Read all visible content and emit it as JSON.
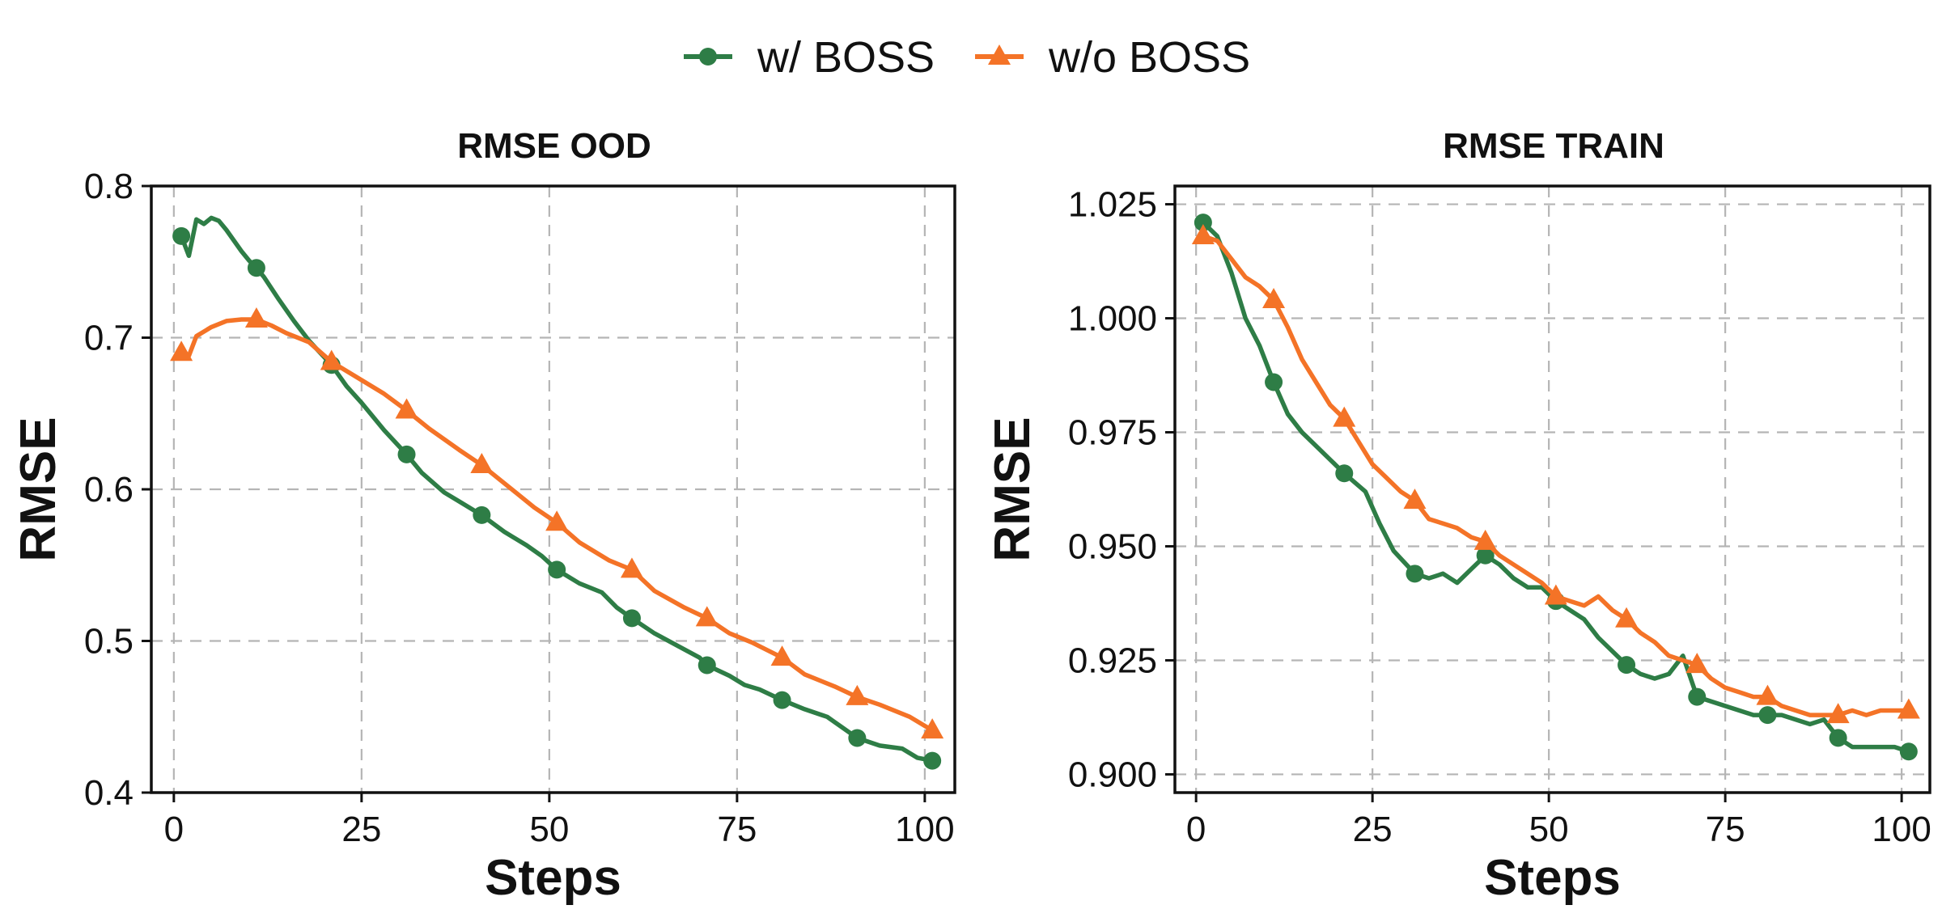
{
  "legend": {
    "items": [
      {
        "label": "w/ BOSS",
        "color": "#2e7d46",
        "marker": "circle"
      },
      {
        "label": "w/o BOSS",
        "color": "#f47327",
        "marker": "triangle"
      }
    ]
  },
  "chart_data": [
    {
      "type": "line",
      "title": "RMSE OOD",
      "xlabel": "Steps",
      "ylabel": "RMSE",
      "xlim": [
        -3,
        104
      ],
      "ylim": [
        0.4,
        0.8
      ],
      "xticks": [
        0,
        25,
        50,
        75,
        100
      ],
      "yticks": [
        0.4,
        0.5,
        0.6,
        0.7,
        0.8
      ],
      "ytick_labels": [
        "0.4",
        "0.5",
        "0.6",
        "0.7",
        "0.8"
      ],
      "grid": true,
      "legend_position": "top-center",
      "series": [
        {
          "name": "w/ BOSS",
          "color": "#2e7d46",
          "marker": "circle",
          "marker_x": [
            1,
            11,
            21,
            31,
            41,
            51,
            61,
            71,
            81,
            91,
            101
          ],
          "x": [
            1,
            2,
            3,
            4,
            5,
            6,
            7,
            8,
            9,
            10,
            11,
            12,
            14,
            16,
            18,
            21,
            23,
            25,
            28,
            31,
            33,
            36,
            38,
            41,
            44,
            47,
            49,
            51,
            54,
            57,
            59,
            61,
            64,
            67,
            70,
            71,
            74,
            76,
            78,
            81,
            84,
            87,
            89,
            91,
            94,
            97,
            99,
            101
          ],
          "y": [
            0.767,
            0.754,
            0.778,
            0.775,
            0.779,
            0.777,
            0.771,
            0.764,
            0.757,
            0.751,
            0.746,
            0.74,
            0.725,
            0.711,
            0.698,
            0.682,
            0.668,
            0.657,
            0.639,
            0.623,
            0.611,
            0.598,
            0.592,
            0.583,
            0.572,
            0.563,
            0.556,
            0.547,
            0.538,
            0.532,
            0.522,
            0.515,
            0.505,
            0.497,
            0.489,
            0.484,
            0.477,
            0.471,
            0.468,
            0.461,
            0.455,
            0.45,
            0.443,
            0.436,
            0.431,
            0.429,
            0.423,
            0.421
          ]
        },
        {
          "name": "w/o BOSS",
          "color": "#f47327",
          "marker": "triangle",
          "marker_x": [
            1,
            11,
            21,
            31,
            41,
            51,
            61,
            71,
            81,
            91,
            101
          ],
          "x": [
            1,
            2,
            3,
            5,
            7,
            9,
            11,
            13,
            15,
            18,
            21,
            24,
            28,
            31,
            34,
            38,
            41,
            45,
            48,
            51,
            54,
            58,
            61,
            64,
            68,
            71,
            74,
            77,
            81,
            84,
            88,
            91,
            94,
            98,
            101
          ],
          "y": [
            0.69,
            0.688,
            0.701,
            0.707,
            0.711,
            0.712,
            0.712,
            0.708,
            0.703,
            0.697,
            0.684,
            0.675,
            0.663,
            0.652,
            0.64,
            0.626,
            0.616,
            0.6,
            0.588,
            0.578,
            0.565,
            0.553,
            0.547,
            0.533,
            0.522,
            0.515,
            0.505,
            0.499,
            0.489,
            0.478,
            0.47,
            0.463,
            0.458,
            0.45,
            0.441
          ]
        }
      ]
    },
    {
      "type": "line",
      "title": "RMSE TRAIN",
      "xlabel": "Steps",
      "ylabel": "RMSE",
      "xlim": [
        -3,
        104
      ],
      "ylim": [
        0.896,
        1.029
      ],
      "xticks": [
        0,
        25,
        50,
        75,
        100
      ],
      "yticks": [
        0.9,
        0.925,
        0.95,
        0.975,
        1.0,
        1.025
      ],
      "ytick_labels": [
        "0.900",
        "0.925",
        "0.950",
        "0.975",
        "1.000",
        "1.025"
      ],
      "grid": true,
      "legend_position": "top-center",
      "series": [
        {
          "name": "w/ BOSS",
          "color": "#2e7d46",
          "marker": "circle",
          "marker_x": [
            1,
            11,
            21,
            31,
            41,
            51,
            61,
            71,
            81,
            91,
            101
          ],
          "x": [
            1,
            3,
            5,
            7,
            9,
            11,
            13,
            15,
            17,
            19,
            21,
            24,
            26,
            28,
            31,
            33,
            35,
            37,
            39,
            41,
            43,
            45,
            47,
            49,
            51,
            53,
            55,
            57,
            59,
            61,
            63,
            65,
            67,
            69,
            71,
            73,
            75,
            77,
            79,
            81,
            83,
            85,
            87,
            89,
            91,
            93,
            95,
            97,
            99,
            101
          ],
          "y": [
            1.021,
            1.018,
            1.01,
            1.0,
            0.994,
            0.986,
            0.979,
            0.975,
            0.972,
            0.969,
            0.966,
            0.962,
            0.955,
            0.949,
            0.944,
            0.943,
            0.944,
            0.942,
            0.945,
            0.948,
            0.946,
            0.943,
            0.941,
            0.941,
            0.938,
            0.936,
            0.934,
            0.93,
            0.927,
            0.924,
            0.922,
            0.921,
            0.922,
            0.926,
            0.917,
            0.916,
            0.915,
            0.914,
            0.913,
            0.913,
            0.913,
            0.912,
            0.911,
            0.912,
            0.908,
            0.906,
            0.906,
            0.906,
            0.906,
            0.905
          ]
        },
        {
          "name": "w/o BOSS",
          "color": "#f47327",
          "marker": "triangle",
          "marker_x": [
            1,
            11,
            21,
            31,
            41,
            51,
            61,
            71,
            81,
            91,
            101
          ],
          "x": [
            1,
            3,
            5,
            7,
            9,
            11,
            13,
            15,
            17,
            19,
            21,
            23,
            25,
            27,
            29,
            31,
            33,
            35,
            37,
            39,
            41,
            43,
            45,
            47,
            49,
            51,
            53,
            55,
            57,
            59,
            61,
            63,
            65,
            67,
            69,
            71,
            73,
            75,
            77,
            79,
            81,
            83,
            85,
            87,
            89,
            91,
            93,
            95,
            97,
            99,
            101
          ],
          "y": [
            1.018,
            1.017,
            1.013,
            1.009,
            1.007,
            1.004,
            0.998,
            0.991,
            0.986,
            0.981,
            0.978,
            0.973,
            0.968,
            0.965,
            0.962,
            0.96,
            0.956,
            0.955,
            0.954,
            0.952,
            0.951,
            0.948,
            0.946,
            0.944,
            0.942,
            0.939,
            0.938,
            0.937,
            0.939,
            0.936,
            0.934,
            0.931,
            0.929,
            0.926,
            0.925,
            0.924,
            0.921,
            0.919,
            0.918,
            0.917,
            0.917,
            0.915,
            0.914,
            0.913,
            0.913,
            0.913,
            0.914,
            0.913,
            0.914,
            0.914,
            0.914
          ]
        }
      ]
    }
  ]
}
